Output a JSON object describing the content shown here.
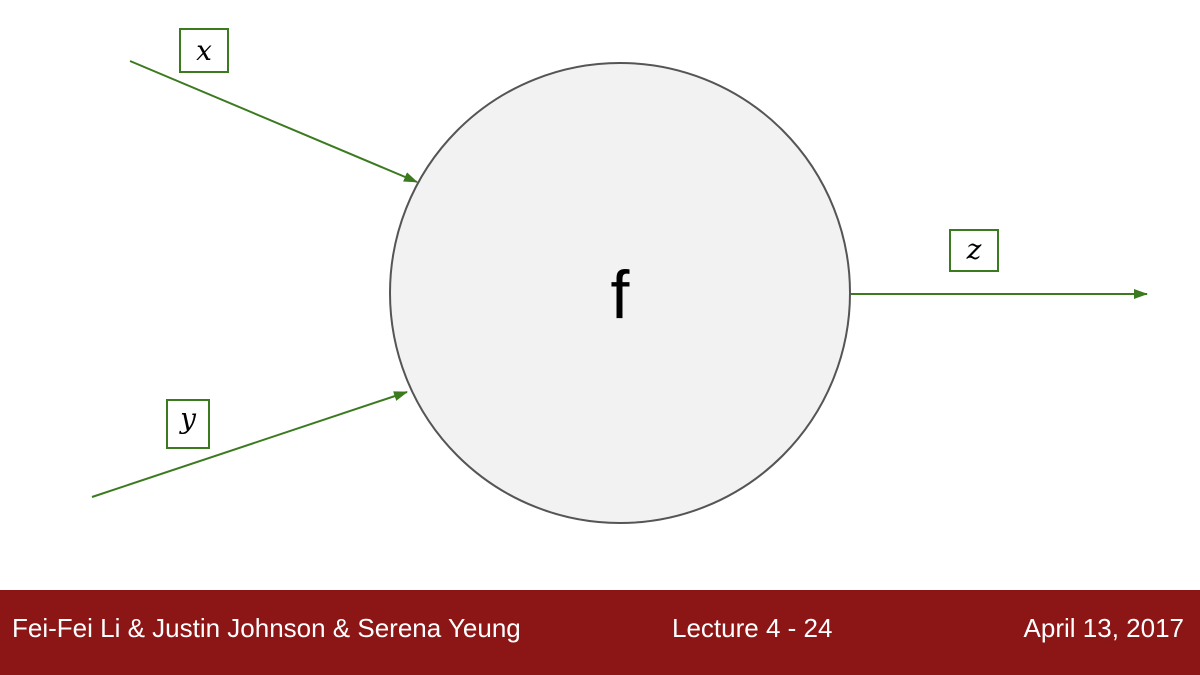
{
  "diagram": {
    "node_label": "f",
    "inputs": [
      {
        "label": "x"
      },
      {
        "label": "y"
      }
    ],
    "output": {
      "label": "z"
    },
    "colors": {
      "edge": "#3b7a1f",
      "node_fill": "#f2f2f2",
      "node_stroke": "#555555"
    }
  },
  "footer": {
    "authors": "Fei-Fei Li & Justin Johnson & Serena Yeung",
    "lecture": "Lecture 4 - 24",
    "date": "April 13, 2017",
    "background": "#8c1515"
  }
}
